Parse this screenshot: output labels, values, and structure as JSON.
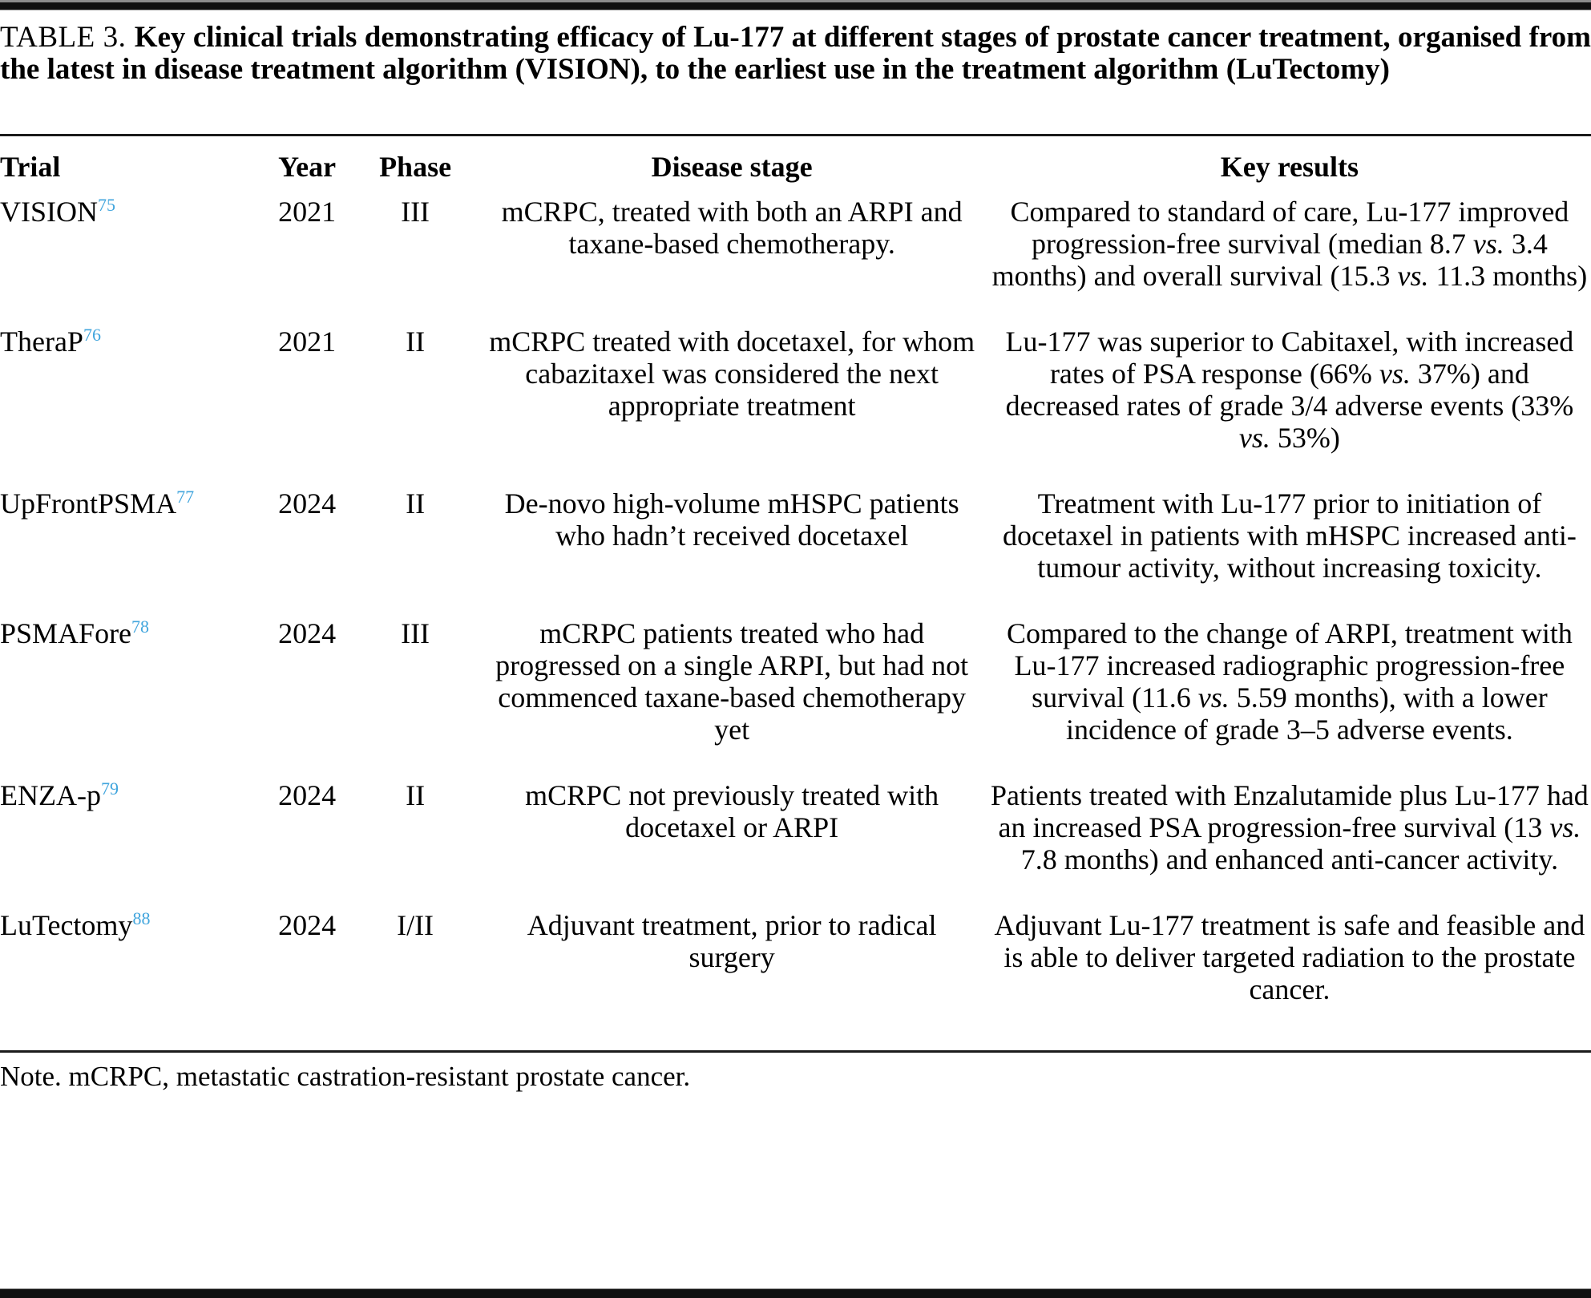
{
  "page": {
    "title_label": "TABLE 3.",
    "title_text": "Key clinical trials demonstrating efficacy of Lu-177 at different stages of prostate cancer treatment, organised from the latest in disease treatment algorithm (VISION), to the earliest use in the treatment algorithm (LuTectomy)",
    "note": "Note. mCRPC, metastatic castration-resistant prostate cancer."
  },
  "colors": {
    "reference_link": "#41a5dd",
    "rule": "#101010"
  },
  "table": {
    "columns": [
      {
        "key": "trial",
        "label": "Trial"
      },
      {
        "key": "year",
        "label": "Year"
      },
      {
        "key": "phase",
        "label": "Phase"
      },
      {
        "key": "disease_stage",
        "label": "Disease stage"
      },
      {
        "key": "key_results",
        "label": "Key results"
      }
    ],
    "rows": [
      {
        "trial": "VISION",
        "reference": "75",
        "year": "2021",
        "phase": "III",
        "disease_stage": [
          {
            "text": "mCRPC, treated with both an ARPI and taxane-based chemotherapy."
          }
        ],
        "key_results": [
          {
            "text": "Compared to standard of care, Lu-177 improved progression-free survival (median 8.7 "
          },
          {
            "text": "vs.",
            "italic": true
          },
          {
            "text": " 3.4 months) and overall survival (15.3 "
          },
          {
            "text": "vs.",
            "italic": true
          },
          {
            "text": " 11.3 months)"
          }
        ]
      },
      {
        "trial": "TheraP",
        "reference": "76",
        "year": "2021",
        "phase": "II",
        "disease_stage": [
          {
            "text": "mCRPC treated with docetaxel, for whom cabazitaxel was considered the next appropriate treatment"
          }
        ],
        "key_results": [
          {
            "text": "Lu-177 was superior to Cabitaxel, with increased rates of PSA response (66% "
          },
          {
            "text": "vs.",
            "italic": true
          },
          {
            "text": " 37%) and decreased rates of grade 3/4 adverse events (33% "
          },
          {
            "text": "vs.",
            "italic": true
          },
          {
            "text": " 53%)"
          }
        ]
      },
      {
        "trial": "UpFrontPSMA",
        "reference": "77",
        "year": "2024",
        "phase": "II",
        "disease_stage": [
          {
            "text": "De-novo high-volume mHSPC patients who hadn’t received docetaxel"
          }
        ],
        "key_results": [
          {
            "text": "Treatment with Lu-177 prior to initiation of docetaxel in patients with mHSPC increased anti-tumour activity, without increasing toxicity."
          }
        ]
      },
      {
        "trial": "PSMAFore",
        "reference": "78",
        "year": "2024",
        "phase": "III",
        "disease_stage": [
          {
            "text": "mCRPC patients treated who had progressed on a single ARPI, but had not commenced taxane-based chemotherapy yet"
          }
        ],
        "key_results": [
          {
            "text": "Compared to the change of ARPI, treatment with Lu-177 increased radiographic progression-free survival (11.6 "
          },
          {
            "text": "vs.",
            "italic": true
          },
          {
            "text": " 5.59 months), with a lower incidence of grade 3–5 adverse events."
          }
        ]
      },
      {
        "trial": "ENZA-p",
        "reference": "79",
        "year": "2024",
        "phase": "II",
        "disease_stage": [
          {
            "text": "mCRPC not previously treated with docetaxel or ARPI"
          }
        ],
        "key_results": [
          {
            "text": "Patients treated with Enzalutamide plus Lu-177 had an increased PSA progression-free survival (13 "
          },
          {
            "text": "vs.",
            "italic": true
          },
          {
            "text": " 7.8 months) and enhanced anti-cancer activity."
          }
        ]
      },
      {
        "trial": "LuTectomy",
        "reference": "88",
        "year": "2024",
        "phase": "I/II",
        "disease_stage": [
          {
            "text": "Adjuvant treatment, prior to radical surgery"
          }
        ],
        "key_results": [
          {
            "text": "Adjuvant Lu-177 treatment is safe and feasible and is able to deliver targeted radiation to the prostate cancer."
          }
        ]
      }
    ]
  }
}
